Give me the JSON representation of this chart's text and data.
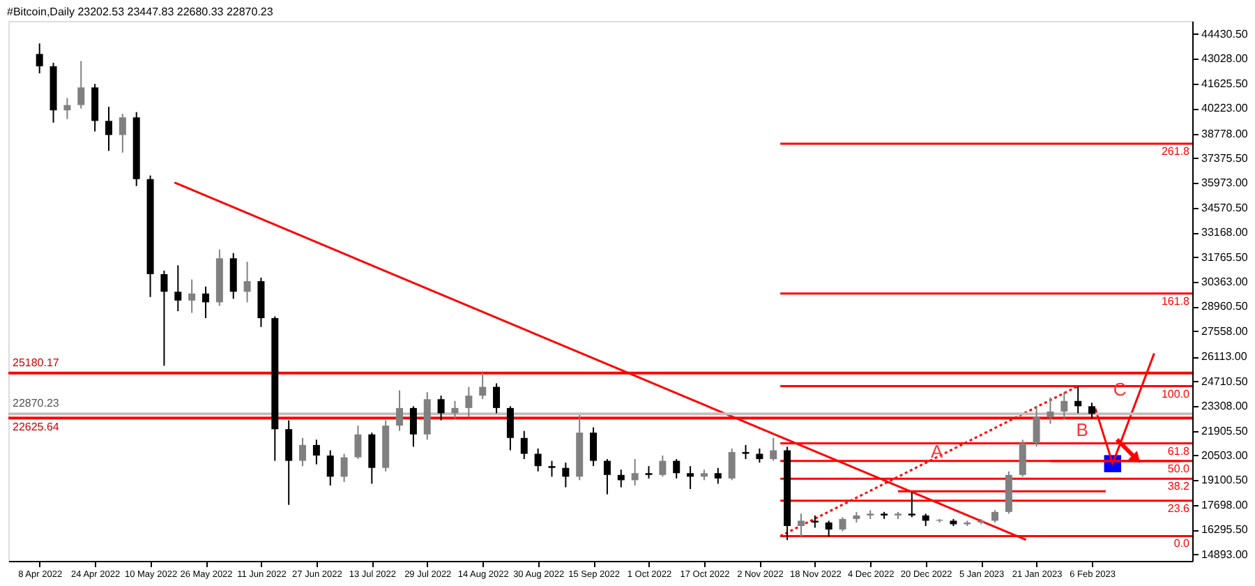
{
  "chart_data": {
    "type": "candlestick",
    "title": "#Bitcoin,Daily  23202.53 23447.83 22680.33 22870.23",
    "x": [
      "2022-04-08",
      "2022-04-12",
      "2022-04-16",
      "2022-04-20",
      "2022-04-24",
      "2022-04-28",
      "2022-05-02",
      "2022-05-06",
      "2022-05-10",
      "2022-05-14",
      "2022-05-18",
      "2022-05-22",
      "2022-05-26",
      "2022-05-30",
      "2022-06-03",
      "2022-06-07",
      "2022-06-11",
      "2022-06-15",
      "2022-06-19",
      "2022-06-23",
      "2022-06-27",
      "2022-07-01",
      "2022-07-05",
      "2022-07-09",
      "2022-07-13",
      "2022-07-17",
      "2022-07-21",
      "2022-07-25",
      "2022-07-29",
      "2022-08-02",
      "2022-08-06",
      "2022-08-10",
      "2022-08-14",
      "2022-08-18",
      "2022-08-22",
      "2022-08-26",
      "2022-08-30",
      "2022-09-03",
      "2022-09-07",
      "2022-09-11",
      "2022-09-15",
      "2022-09-19",
      "2022-09-23",
      "2022-09-27",
      "2022-10-01",
      "2022-10-05",
      "2022-10-09",
      "2022-10-13",
      "2022-10-17",
      "2022-10-21",
      "2022-10-25",
      "2022-10-29",
      "2022-11-02",
      "2022-11-06",
      "2022-11-10",
      "2022-11-14",
      "2022-11-18",
      "2022-11-22",
      "2022-11-26",
      "2022-11-30",
      "2022-12-04",
      "2022-12-08",
      "2022-12-12",
      "2022-12-16",
      "2022-12-20",
      "2022-12-24",
      "2022-12-28",
      "2023-01-01",
      "2023-01-05",
      "2023-01-09",
      "2023-01-13",
      "2023-01-17",
      "2023-01-21",
      "2023-01-25",
      "2023-01-29",
      "2023-02-02",
      "2023-02-06"
    ],
    "ohlc": [
      [
        43300,
        43900,
        42200,
        42600
      ],
      [
        42600,
        42800,
        39400,
        40100
      ],
      [
        40100,
        40800,
        39600,
        40400
      ],
      [
        40400,
        42900,
        40200,
        41400
      ],
      [
        41400,
        41600,
        38900,
        39500
      ],
      [
        39500,
        40300,
        37800,
        38700
      ],
      [
        38700,
        39900,
        37700,
        39700
      ],
      [
        39700,
        40000,
        35800,
        36200
      ],
      [
        36200,
        36400,
        29500,
        30800
      ],
      [
        30800,
        31000,
        25600,
        29800
      ],
      [
        29800,
        31300,
        28700,
        29300
      ],
      [
        29300,
        30500,
        28600,
        29700
      ],
      [
        29700,
        30100,
        28300,
        29200
      ],
      [
        29200,
        32200,
        29000,
        31700
      ],
      [
        31700,
        32000,
        29400,
        29800
      ],
      [
        29800,
        31500,
        29200,
        30400
      ],
      [
        30400,
        30600,
        27800,
        28300
      ],
      [
        28300,
        28400,
        20200,
        22000
      ],
      [
        22000,
        22500,
        17700,
        20200
      ],
      [
        20200,
        21500,
        19900,
        21100
      ],
      [
        21100,
        21400,
        20000,
        20500
      ],
      [
        20500,
        20800,
        18800,
        19300
      ],
      [
        19300,
        20600,
        19000,
        20400
      ],
      [
        20400,
        22200,
        20300,
        21700
      ],
      [
        21700,
        21800,
        18900,
        19800
      ],
      [
        19800,
        22500,
        19600,
        22200
      ],
      [
        22200,
        24200,
        21900,
        23200
      ],
      [
        23200,
        23300,
        21000,
        21700
      ],
      [
        21700,
        24100,
        21400,
        23700
      ],
      [
        23700,
        23900,
        22500,
        22900
      ],
      [
        22900,
        23600,
        22600,
        23200
      ],
      [
        23200,
        24400,
        22700,
        23900
      ],
      [
        23900,
        25200,
        23700,
        24400
      ],
      [
        24400,
        24600,
        22900,
        23200
      ],
      [
        23200,
        23300,
        20800,
        21500
      ],
      [
        21500,
        21900,
        20300,
        20600
      ],
      [
        20600,
        20900,
        19600,
        19900
      ],
      [
        19900,
        20200,
        19300,
        19800
      ],
      [
        19800,
        20100,
        18700,
        19300
      ],
      [
        19300,
        22800,
        19100,
        21800
      ],
      [
        21800,
        22100,
        19900,
        20200
      ],
      [
        20200,
        20300,
        18300,
        19400
      ],
      [
        19400,
        19700,
        18700,
        19100
      ],
      [
        19100,
        20300,
        18800,
        19500
      ],
      [
        19500,
        19900,
        19200,
        19400
      ],
      [
        19400,
        20500,
        19300,
        20200
      ],
      [
        20200,
        20300,
        19200,
        19500
      ],
      [
        19500,
        19900,
        18600,
        19300
      ],
      [
        19300,
        19700,
        19100,
        19500
      ],
      [
        19500,
        19800,
        18900,
        19200
      ],
      [
        19200,
        20900,
        19100,
        20700
      ],
      [
        20700,
        21100,
        20300,
        20600
      ],
      [
        20600,
        20900,
        20100,
        20300
      ],
      [
        20300,
        21500,
        20200,
        20800
      ],
      [
        20800,
        21000,
        15700,
        16500
      ],
      [
        16500,
        17200,
        15900,
        16800
      ],
      [
        16800,
        17100,
        16400,
        16700
      ],
      [
        16700,
        16800,
        15900,
        16300
      ],
      [
        16300,
        17000,
        16200,
        16900
      ],
      [
        16900,
        17300,
        16700,
        17100
      ],
      [
        17100,
        17400,
        16900,
        17200
      ],
      [
        17200,
        17300,
        16900,
        17100
      ],
      [
        17100,
        17300,
        16900,
        17200
      ],
      [
        17200,
        18400,
        17000,
        17100
      ],
      [
        17100,
        17200,
        16500,
        16800
      ],
      [
        16800,
        16900,
        16700,
        16850
      ],
      [
        16800,
        16900,
        16500,
        16600
      ],
      [
        16600,
        16800,
        16500,
        16700
      ],
      [
        16700,
        16900,
        16600,
        16800
      ],
      [
        16800,
        17400,
        16700,
        17300
      ],
      [
        17300,
        19600,
        17200,
        19400
      ],
      [
        19400,
        21400,
        19300,
        21200
      ],
      [
        21200,
        23300,
        21000,
        22700
      ],
      [
        22700,
        23800,
        22300,
        23000
      ],
      [
        23000,
        24100,
        22600,
        23600
      ],
      [
        23600,
        24400,
        22900,
        23300
      ],
      [
        23300,
        23500,
        22600,
        22870.23
      ]
    ],
    "colors": [
      "#000000",
      "#000000",
      "#808080",
      "#808080",
      "#000000",
      "#000000",
      "#808080",
      "#000000",
      "#000000",
      "#000000",
      "#000000",
      "#808080",
      "#000000",
      "#808080",
      "#000000",
      "#808080",
      "#000000",
      "#000000",
      "#000000",
      "#808080",
      "#000000",
      "#000000",
      "#808080",
      "#808080",
      "#000000",
      "#808080",
      "#808080",
      "#000000",
      "#808080",
      "#000000",
      "#808080",
      "#808080",
      "#808080",
      "#000000",
      "#000000",
      "#000000",
      "#000000",
      "#000000",
      "#000000",
      "#808080",
      "#000000",
      "#000000",
      "#000000",
      "#808080",
      "#000000",
      "#808080",
      "#000000",
      "#000000",
      "#808080",
      "#000000",
      "#808080",
      "#000000",
      "#000000",
      "#808080",
      "#000000",
      "#808080",
      "#000000",
      "#000000",
      "#808080",
      "#808080",
      "#808080",
      "#000000",
      "#808080",
      "#000000",
      "#000000",
      "#808080",
      "#000000",
      "#808080",
      "#808080",
      "#808080",
      "#808080",
      "#808080",
      "#808080",
      "#808080",
      "#808080",
      "#000000",
      "#000000"
    ],
    "series": [
      {
        "type": "line",
        "color": "#ff0000",
        "x": [
          "2022-05-17",
          "2023-01-18"
        ],
        "values": [
          36000,
          15710
        ]
      },
      {
        "type": "line",
        "color": "#ff0000",
        "line_style": "dotted",
        "x": [
          "2022-11-08",
          "2023-02-02"
        ],
        "values": [
          15930,
          24440
        ]
      },
      {
        "type": "line",
        "name": "0.0",
        "color": "#ff0000",
        "x": [
          "2022-11-08",
          "2023-03-07"
        ],
        "values": [
          15930,
          15930
        ]
      },
      {
        "type": "line",
        "name": "23.6",
        "color": "#ff0000",
        "x": [
          "2022-11-08",
          "2023-03-07"
        ],
        "values": [
          17940,
          17940
        ]
      },
      {
        "type": "line",
        "name": "38.2",
        "color": "#ff0000",
        "x": [
          "2022-11-08",
          "2023-03-07"
        ],
        "values": [
          19180,
          19180
        ]
      },
      {
        "type": "line",
        "name": "50.0",
        "color": "#ff0000",
        "x": [
          "2022-11-08",
          "2023-03-07"
        ],
        "values": [
          20190,
          20190
        ]
      },
      {
        "type": "line",
        "name": "61.8",
        "color": "#ff0000",
        "x": [
          "2022-11-08",
          "2023-03-07"
        ],
        "values": [
          21190,
          21190
        ]
      },
      {
        "type": "line",
        "name": "100.0",
        "color": "#ff0000",
        "x": [
          "2022-11-08",
          "2023-03-07"
        ],
        "values": [
          24440,
          24440
        ]
      },
      {
        "type": "line",
        "name": "161.8",
        "color": "#ff0000",
        "x": [
          "2022-11-08",
          "2023-03-07"
        ],
        "values": [
          29700,
          29700
        ]
      },
      {
        "type": "line",
        "name": "261.8",
        "color": "#ff0000",
        "x": [
          "2022-11-08",
          "2023-03-07"
        ],
        "values": [
          38210,
          38210
        ]
      },
      {
        "type": "line",
        "color": "#ff0000",
        "x": [
          "2022-12-12",
          "2023-02-10"
        ],
        "values": [
          18470,
          18470
        ]
      },
      {
        "type": "line",
        "color": "#ff0000",
        "x": [
          "2023-01-25",
          "2023-03-04"
        ],
        "values": [
          20180,
          20180
        ]
      },
      {
        "type": "line",
        "color": "#ff0000",
        "x": [
          "2023-02-07",
          "2023-02-12",
          "2023-02-24"
        ],
        "values": [
          23170,
          20040,
          26300
        ]
      },
      {
        "type": "scatter",
        "marker": "square",
        "color": "#0000ff",
        "x": [
          "2023-02-12"
        ],
        "values": [
          20040
        ]
      }
    ],
    "ref_lines": [
      {
        "axis": "y",
        "value": 25180.17,
        "label": "25180.17",
        "color": "#ff0000"
      },
      {
        "axis": "y",
        "value": 22625.64,
        "label": "22625.64",
        "color": "#ff0000"
      },
      {
        "axis": "y",
        "value": 22870.23,
        "label": "22870.23",
        "color": "#c0c0c0"
      }
    ],
    "annotations": [
      {
        "text": "A",
        "x": "2022-12-29",
        "y": 20690
      },
      {
        "text": "B",
        "x": "2023-02-09",
        "y": 21918
      },
      {
        "text": "C",
        "x": "2023-02-20",
        "y": 24213
      }
    ],
    "xlim": [
      "2022-03-30",
      "2023-03-07"
    ],
    "xticks": [
      {
        "value": "2022-04-08",
        "label": "8 Apr 2022"
      },
      {
        "value": "2022-04-24",
        "label": "24 Apr 2022"
      },
      {
        "value": "2022-05-10",
        "label": "10 May 2022"
      },
      {
        "value": "2022-05-26",
        "label": "26 May 2022"
      },
      {
        "value": "2022-06-11",
        "label": "11 Jun 2022"
      },
      {
        "value": "2022-06-27",
        "label": "27 Jun 2022"
      },
      {
        "value": "2022-07-13",
        "label": "13 Jul 2022"
      },
      {
        "value": "2022-07-29",
        "label": "29 Jul 2022"
      },
      {
        "value": "2022-08-14",
        "label": "14 Aug 2022"
      },
      {
        "value": "2022-08-30",
        "label": "30 Aug 2022"
      },
      {
        "value": "2022-09-15",
        "label": "15 Sep 2022"
      },
      {
        "value": "2022-10-01",
        "label": "1 Oct 2022"
      },
      {
        "value": "2022-10-17",
        "label": "17 Oct 2022"
      },
      {
        "value": "2022-11-02",
        "label": "2 Nov 2022"
      },
      {
        "value": "2022-11-18",
        "label": "18 Nov 2022"
      },
      {
        "value": "2022-12-04",
        "label": "4 Dec 2022"
      },
      {
        "value": "2022-12-20",
        "label": "20 Dec 2022"
      },
      {
        "value": "2023-01-05",
        "label": "5 Jan 2023"
      },
      {
        "value": "2023-01-21",
        "label": "21 Jan 2023"
      },
      {
        "value": "2023-02-06",
        "label": "6 Feb 2023"
      }
    ],
    "ylim": [
      14520,
      45176
    ],
    "yticks": [
      {
        "value": 14893,
        "label": "14893.00"
      },
      {
        "value": 16295.5,
        "label": "16295.50"
      },
      {
        "value": 17698,
        "label": "17698.00"
      },
      {
        "value": 19100.5,
        "label": "19100.50"
      },
      {
        "value": 20503,
        "label": "20503.00"
      },
      {
        "value": 21905.5,
        "label": "21905.50"
      },
      {
        "value": 23308,
        "label": "23308.00"
      },
      {
        "value": 24710.5,
        "label": "24710.50"
      },
      {
        "value": 26113,
        "label": "26113.00"
      },
      {
        "value": 27558,
        "label": "27558.00"
      },
      {
        "value": 28960.5,
        "label": "28960.50"
      },
      {
        "value": 30363,
        "label": "30363.00"
      },
      {
        "value": 31765.5,
        "label": "31765.50"
      },
      {
        "value": 33168,
        "label": "33168.00"
      },
      {
        "value": 34570.5,
        "label": "34570.50"
      },
      {
        "value": 35973,
        "label": "35973.00"
      },
      {
        "value": 37375.5,
        "label": "37375.50"
      },
      {
        "value": 38778,
        "label": "38778.00"
      },
      {
        "value": 40223,
        "label": "40223.00"
      },
      {
        "value": 41625.5,
        "label": "41625.50"
      },
      {
        "value": 43028,
        "label": "43028.00"
      },
      {
        "value": 44430.5,
        "label": "44430.50"
      }
    ]
  }
}
